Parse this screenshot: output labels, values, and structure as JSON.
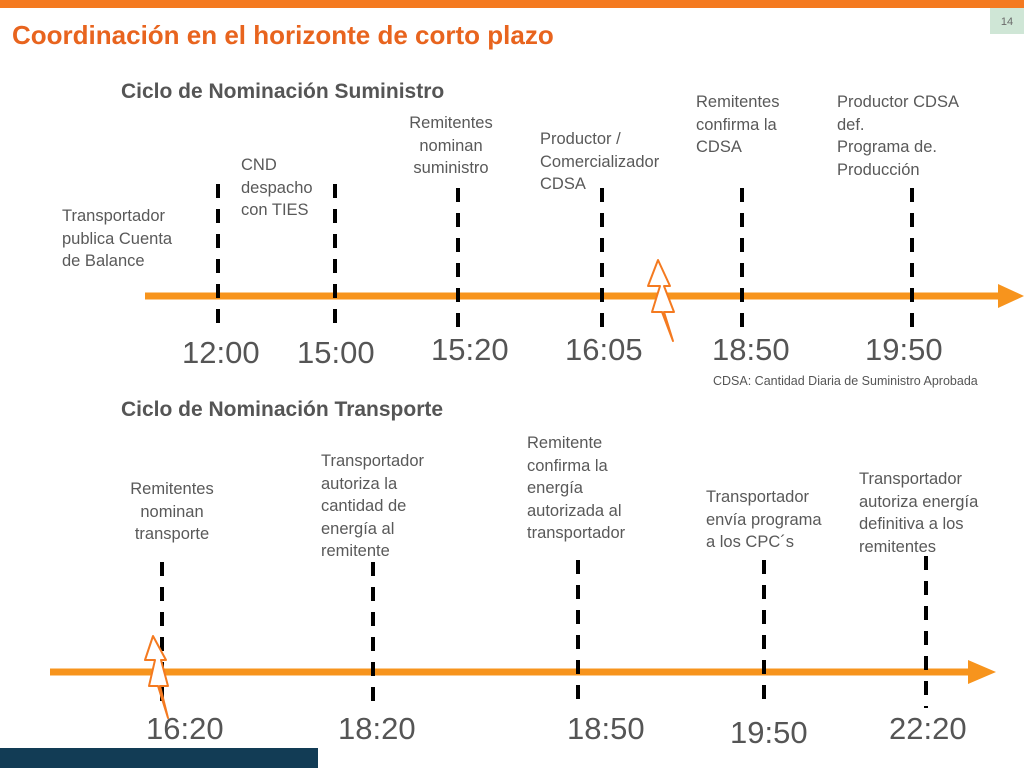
{
  "page_number": "14",
  "title": "Coordinación en el horizonte de corto plazo",
  "colors": {
    "accent": "#f7941d",
    "title": "#e8641e",
    "text": "#595959",
    "footer": "#123c55"
  },
  "supply": {
    "heading": "Ciclo de Nominación  Suministro",
    "events": [
      {
        "time": "12:00",
        "label": [
          "Transportador",
          "publica    Cuenta",
          "de Balance"
        ]
      },
      {
        "time": "15:00",
        "label": [
          "CND",
          "despacho",
          "con TIES"
        ]
      },
      {
        "time": "15:20",
        "label": [
          "Remitentes",
          "nominan",
          "suministro"
        ]
      },
      {
        "time": "16:05",
        "label": [
          "Productor /",
          "Comercializador",
          "CDSA"
        ]
      },
      {
        "time": "18:50",
        "label": [
          "Remitentes",
          "confirma la",
          "CDSA"
        ]
      },
      {
        "time": "19:50",
        "label": [
          "Productor CDSA",
          "def.",
          "Programa de.",
          "Producción"
        ]
      }
    ],
    "footnote": "CDSA: Cantidad Diaria de Suministro Aprobada"
  },
  "transport": {
    "heading": "Ciclo de Nominación  Transporte",
    "events": [
      {
        "time": "16:20",
        "label": [
          "Remitentes",
          "nominan",
          "transporte"
        ]
      },
      {
        "time": "18:20",
        "label": [
          "Transportador",
          "autoriza la",
          "cantidad de",
          "energía al",
          "remitente"
        ]
      },
      {
        "time": "18:50",
        "label": [
          "Remitente",
          "confirma la",
          "energía",
          "autorizada al",
          "transportador"
        ]
      },
      {
        "time": "19:50",
        "label": [
          "Transportador",
          "envía programa",
          "a los CPC´s"
        ]
      },
      {
        "time": "22:20",
        "label": [
          "Transportador",
          "autoriza energía",
          "definitiva a los",
          "remitentes"
        ]
      }
    ]
  }
}
